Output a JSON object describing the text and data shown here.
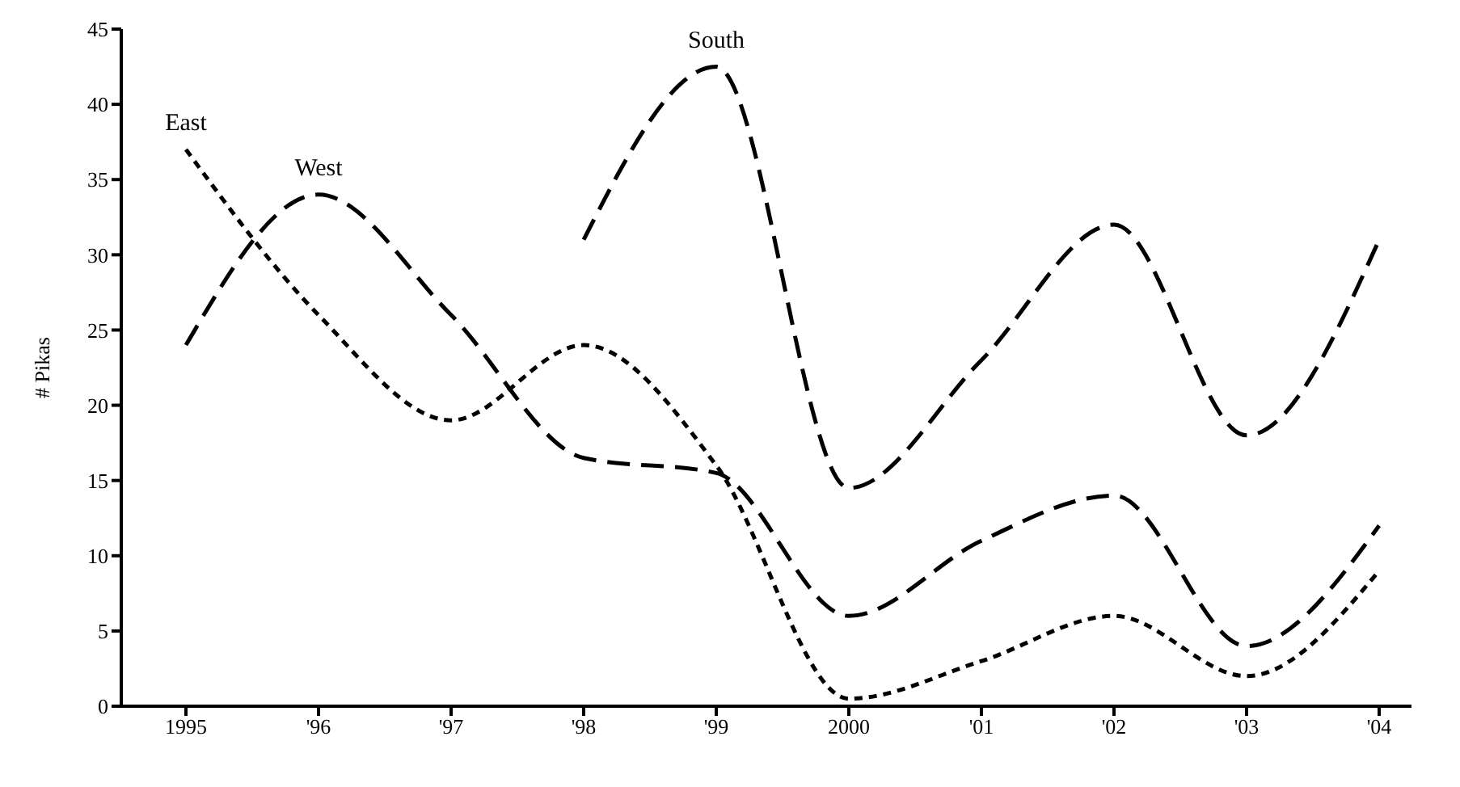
{
  "chart_data": {
    "type": "line",
    "ylabel": "# Pikas",
    "categories": [
      "1995",
      "'96",
      "'97",
      "'98",
      "'99",
      "2000",
      "'01",
      "'02",
      "'03",
      "'04"
    ],
    "series": [
      {
        "name": "West",
        "color": "#000000",
        "line_style": "dashed",
        "values": [
          24,
          34,
          26,
          16.5,
          15.5,
          6,
          11,
          14,
          4,
          12
        ]
      },
      {
        "name": "East",
        "color": "#000000",
        "line_style": "dotted",
        "values": [
          37,
          26,
          19,
          24,
          16,
          0.5,
          3,
          6,
          2,
          9
        ]
      },
      {
        "name": "South",
        "color": "#000000",
        "line_style": "dashed",
        "values": [
          null,
          null,
          null,
          31,
          42.5,
          14.5,
          23,
          32,
          18,
          31
        ]
      }
    ],
    "ylim": [
      0,
      45
    ],
    "yticks": [
      0,
      5,
      10,
      15,
      20,
      25,
      30,
      35,
      40,
      45
    ],
    "grid": false,
    "legend": false,
    "marker": "none"
  }
}
